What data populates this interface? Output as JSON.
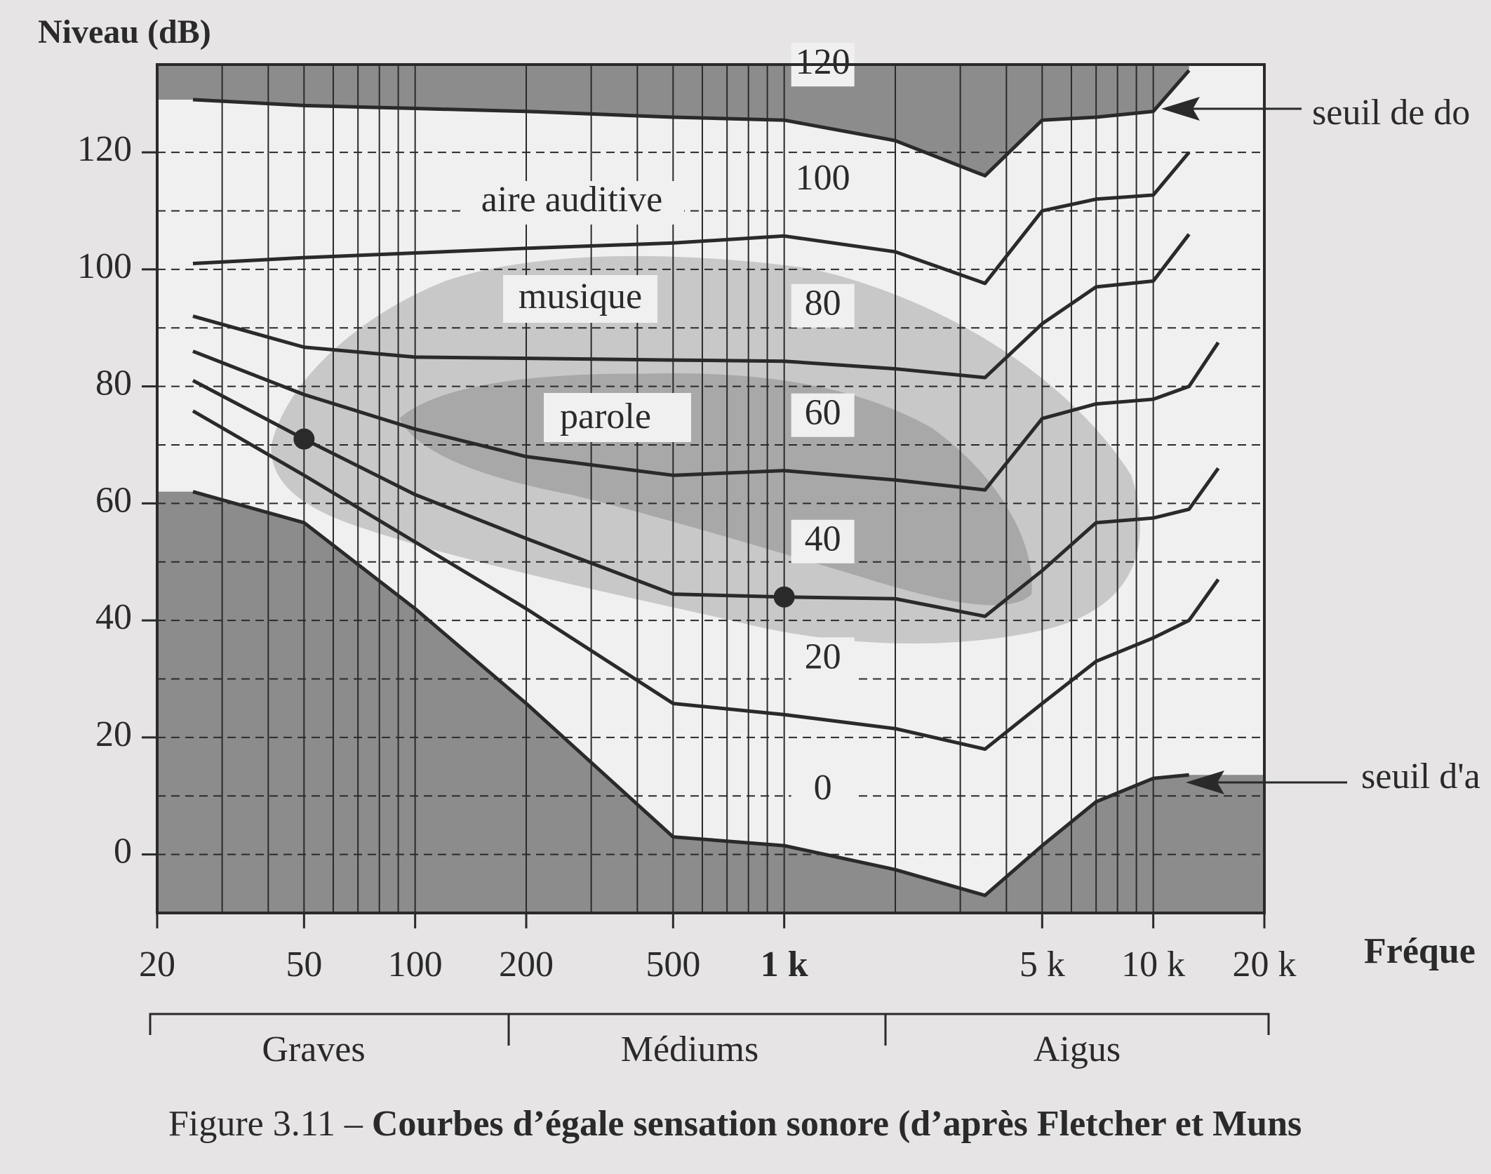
{
  "chart_data": {
    "type": "line",
    "caption_prefix": "Figure 3.11 –",
    "title": "Courbes d’égale sensation sonore (d’après Fletcher et Muns",
    "y_label": "Niveau (dB)",
    "x_label": "Fréque",
    "log_x": true,
    "grid": true,
    "color": "#2a2a2a",
    "x": [
      25,
      50,
      100,
      200,
      500,
      1000,
      2000,
      3500,
      5000,
      7000,
      10000,
      12500,
      15000
    ],
    "series": [
      {
        "name": "120",
        "color": "#2a2a2a",
        "values": [
          129,
          128,
          127.5,
          127,
          126,
          125.5,
          122,
          116,
          125.5,
          126,
          127,
          134,
          null
        ]
      },
      {
        "name": "100",
        "color": "#2a2a2a",
        "values": [
          101,
          102,
          102.8,
          103.6,
          104.5,
          105.7,
          103,
          97.6,
          110,
          112,
          112.7,
          120,
          null
        ]
      },
      {
        "name": "80",
        "color": "#2a2a2a",
        "values": [
          92,
          86.7,
          85,
          84.8,
          84.5,
          84.3,
          83,
          81.5,
          90.7,
          97,
          98,
          106,
          null
        ]
      },
      {
        "name": "60",
        "color": "#2a2a2a",
        "values": [
          86,
          78.6,
          72.7,
          68,
          64.8,
          65.6,
          64,
          62.3,
          74.5,
          77,
          77.8,
          80,
          87.5
        ]
      },
      {
        "name": "40",
        "color": "#2a2a2a",
        "values": [
          81,
          71,
          61.5,
          54,
          44.5,
          44,
          43.7,
          40.7,
          48.5,
          56.7,
          57.5,
          59,
          66
        ]
      },
      {
        "name": "20",
        "color": "#2a2a2a",
        "values": [
          75.8,
          64.8,
          53.4,
          42,
          25.8,
          23.9,
          21.5,
          18,
          25.8,
          33,
          37,
          40,
          47
        ]
      },
      {
        "name": "0",
        "color": "#2a2a2a",
        "values": [
          62,
          56.7,
          42,
          25.8,
          3,
          1.5,
          -2.6,
          -7,
          1.5,
          9,
          13,
          13.6,
          null
        ]
      }
    ],
    "points": {
      "x": [
        50,
        1000
      ],
      "y": [
        71,
        44
      ]
    },
    "xlim": [
      20,
      20000
    ],
    "ylim": [
      -10,
      135
    ],
    "xticks": [
      20,
      50,
      100,
      200,
      500,
      {
        "value": 1000,
        "label": "1 k"
      },
      {
        "value": 5000,
        "label": "5 k"
      },
      {
        "value": 10000,
        "label": "10 k"
      },
      {
        "value": 20000,
        "label": "20 k"
      }
    ],
    "yticks": [
      0,
      20,
      40,
      60,
      80,
      100,
      120
    ],
    "regions": [
      "aire auditive",
      "musique",
      "parole"
    ],
    "annotations": [
      "seuil de do",
      "seuil d'a"
    ],
    "bands": [
      "Graves",
      "Médiums",
      "Aigus"
    ]
  }
}
